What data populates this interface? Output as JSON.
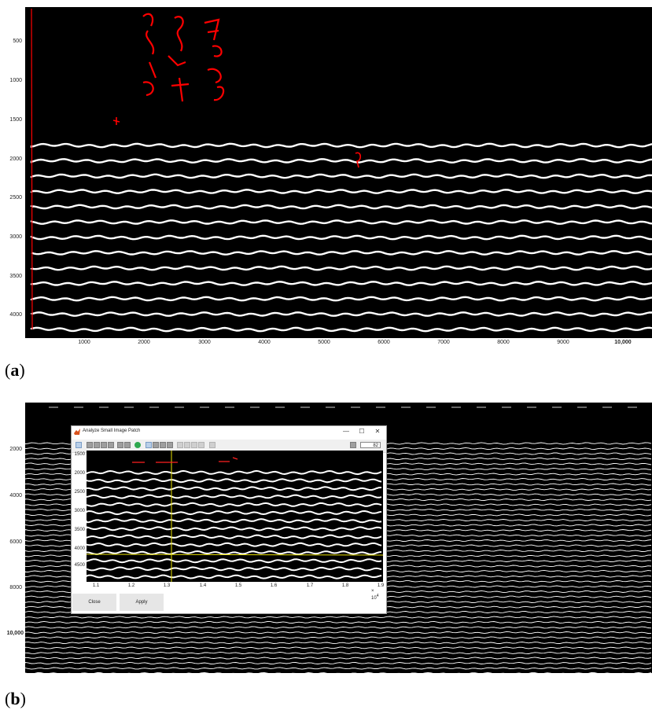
{
  "panel_a": {
    "y_ticks": [
      "500",
      "1000",
      "1500",
      "2000",
      "2500",
      "3000",
      "3500",
      "4000"
    ],
    "x_ticks": [
      "1000",
      "2000",
      "3000",
      "4000",
      "5000",
      "6000",
      "7000",
      "8000",
      "9000",
      "10,000"
    ],
    "trace_color": "#ffffff",
    "annotation_color": "#ff0000",
    "caption_label": "a"
  },
  "panel_b": {
    "y_ticks": [
      "2000",
      "4000",
      "6000",
      "8000",
      "10,000"
    ],
    "caption_label": "b"
  },
  "dialog": {
    "title": "Analyze Small Image Patch",
    "window_buttons": [
      "—",
      "☐",
      "✕"
    ],
    "zoom_value": "82",
    "y_ticks": [
      "1500",
      "2000",
      "2500",
      "3000",
      "3500",
      "4000",
      "4500"
    ],
    "x_ticks": [
      "1.1",
      "1.2",
      "1.3",
      "1.4",
      "1.5",
      "1.6",
      "1.7",
      "1.8",
      "1.9"
    ],
    "x_multiplier": "× 10",
    "x_exponent": "4",
    "close_label": "Close",
    "apply_label": "Apply",
    "cursor_color": "#e8e000"
  }
}
